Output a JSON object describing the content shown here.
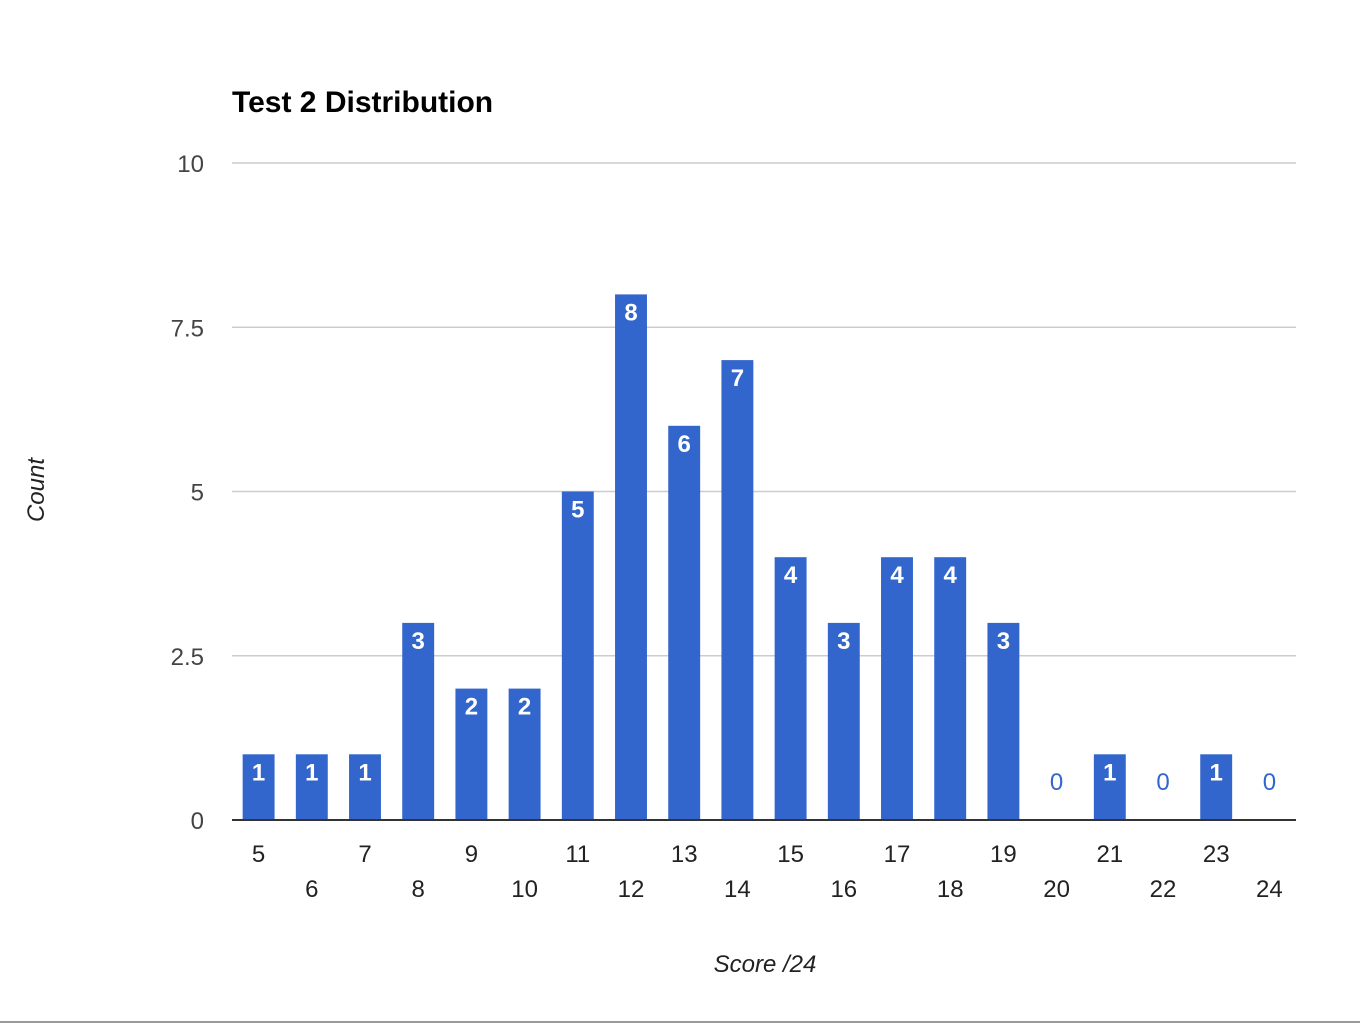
{
  "chart_data": {
    "type": "bar",
    "title": "Test 2 Distribution",
    "xlabel": "Score /24",
    "ylabel": "Count",
    "categories": [
      "5",
      "6",
      "7",
      "8",
      "9",
      "10",
      "11",
      "12",
      "13",
      "14",
      "15",
      "16",
      "17",
      "18",
      "19",
      "20",
      "21",
      "22",
      "23",
      "24"
    ],
    "values": [
      1,
      1,
      1,
      3,
      2,
      2,
      5,
      8,
      6,
      7,
      4,
      3,
      4,
      4,
      3,
      0,
      1,
      0,
      1,
      0
    ],
    "ylim": [
      0,
      10
    ],
    "yticks": [
      0,
      2.5,
      5,
      7.5,
      10
    ],
    "ytick_labels": [
      "0",
      "2.5",
      "5",
      "7.5",
      "10"
    ],
    "grid": true,
    "legend": "none",
    "data_labels": true,
    "colors": {
      "bar": "#3366cc",
      "label_inside": "#ffffff",
      "label_zero": "#3366cc",
      "grid": "#cccccc",
      "axis": "#333333"
    }
  }
}
